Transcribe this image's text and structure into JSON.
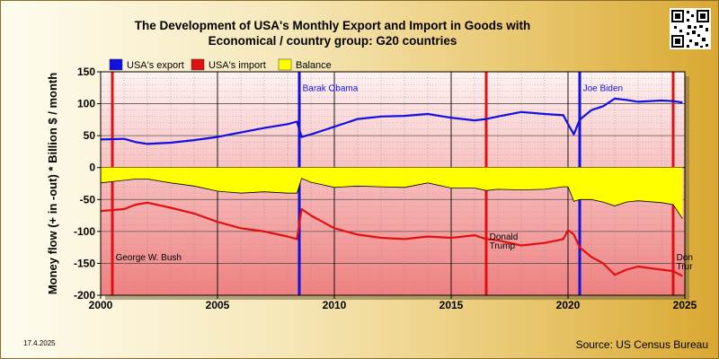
{
  "header": {
    "title_line1": "The Development of USA's Monthly Export and Import in Goods with",
    "title_line2": "Economical / country group: G20 countries"
  },
  "footer": {
    "date": "17.4.2025",
    "source": "Source: US Census Bureau"
  },
  "colors": {
    "export": "#1010e0",
    "import": "#e01010",
    "balance": "#ffff00",
    "event_red": "#e01010",
    "event_blue": "#1010e0"
  },
  "chart_data": {
    "type": "line",
    "title": "The Development of USA's Monthly Export and Import in Goods with Economical / country group: G20 countries",
    "xlabel": "",
    "ylabel": "Money flow (+ in -out) * Billion $ / month",
    "xlim": [
      2000,
      2025
    ],
    "ylim": [
      -200,
      150
    ],
    "x_ticks": [
      "2000",
      "2005",
      "2010",
      "2015",
      "2020",
      "2025"
    ],
    "y_ticks": [
      "150",
      "100",
      "50",
      "0",
      "-50",
      "-100",
      "-150",
      "-200"
    ],
    "grid": true,
    "legend_position": "top",
    "legend": [
      "USA's export",
      "USA's import",
      "Balance"
    ],
    "series": [
      {
        "name": "USA's export",
        "x": [
          2000,
          2001,
          2001.5,
          2002,
          2003,
          2004,
          2005,
          2006,
          2007,
          2008,
          2008.4,
          2008.6,
          2009,
          2009.5,
          2010,
          2011,
          2012,
          2013,
          2014,
          2015,
          2016,
          2016.5,
          2017,
          2018,
          2019,
          2019.8,
          2020,
          2020.25,
          2020.5,
          2021,
          2021.5,
          2022,
          2022.5,
          2023,
          2024,
          2024.5,
          2024.9
        ],
        "values": [
          44,
          45,
          40,
          37,
          39,
          43,
          48,
          55,
          62,
          68,
          72,
          48,
          52,
          58,
          64,
          76,
          80,
          81,
          84,
          78,
          74,
          76,
          80,
          87,
          84,
          82,
          68,
          52,
          75,
          90,
          96,
          108,
          106,
          103,
          105,
          104,
          102
        ]
      },
      {
        "name": "USA's import",
        "x": [
          2000,
          2001,
          2001.5,
          2002,
          2003,
          2004,
          2005,
          2006,
          2007,
          2008,
          2008.4,
          2008.6,
          2009,
          2009.5,
          2010,
          2011,
          2012,
          2013,
          2014,
          2015,
          2016,
          2016.5,
          2017,
          2018,
          2019,
          2019.8,
          2020,
          2020.25,
          2020.5,
          2021,
          2021.5,
          2022,
          2022.5,
          2023,
          2024,
          2024.5,
          2024.9
        ],
        "values": [
          -68,
          -65,
          -58,
          -55,
          -63,
          -72,
          -85,
          -95,
          -100,
          -108,
          -112,
          -65,
          -75,
          -85,
          -95,
          -105,
          -110,
          -112,
          -108,
          -110,
          -106,
          -112,
          -114,
          -122,
          -118,
          -112,
          -98,
          -105,
          -125,
          -140,
          -150,
          -168,
          -160,
          -155,
          -160,
          -162,
          -170
        ]
      },
      {
        "name": "Balance",
        "x": [
          2000,
          2001,
          2001.5,
          2002,
          2003,
          2004,
          2005,
          2006,
          2007,
          2008,
          2008.4,
          2008.6,
          2009,
          2009.5,
          2010,
          2011,
          2012,
          2013,
          2014,
          2015,
          2016,
          2016.5,
          2017,
          2018,
          2019,
          2019.8,
          2020,
          2020.25,
          2020.5,
          2021,
          2021.5,
          2022,
          2022.5,
          2023,
          2024,
          2024.5,
          2024.9
        ],
        "values": [
          -24,
          -20,
          -18,
          -18,
          -24,
          -29,
          -37,
          -40,
          -38,
          -40,
          -40,
          -17,
          -23,
          -27,
          -31,
          -29,
          -30,
          -31,
          -24,
          -32,
          -32,
          -36,
          -34,
          -35,
          -34,
          -30,
          -30,
          -53,
          -50,
          -50,
          -54,
          -60,
          -54,
          -52,
          -55,
          -58,
          -80
        ]
      }
    ],
    "events": [
      {
        "x": 2000.5,
        "color": "red",
        "label": ""
      },
      {
        "x": 2008.5,
        "color": "blue",
        "label": ""
      },
      {
        "x": 2016.5,
        "color": "red",
        "label": ""
      },
      {
        "x": 2020.5,
        "color": "blue",
        "label": ""
      },
      {
        "x": 2024.5,
        "color": "red",
        "label": ""
      }
    ],
    "annotations": [
      {
        "text": "George W. Bush",
        "x": 2000.6,
        "y": -145
      },
      {
        "text": "Barak Obama",
        "x": 2008.6,
        "y": 120
      },
      {
        "text": "Donald",
        "x": 2016.6,
        "y": -113
      },
      {
        "text": "Trump",
        "x": 2016.6,
        "y": -127
      },
      {
        "text": "Joe Biden",
        "x": 2020.6,
        "y": 120
      },
      {
        "text": "Don",
        "x": 2024.6,
        "y": -145
      },
      {
        "text": "Trur",
        "x": 2024.6,
        "y": -159
      }
    ]
  }
}
